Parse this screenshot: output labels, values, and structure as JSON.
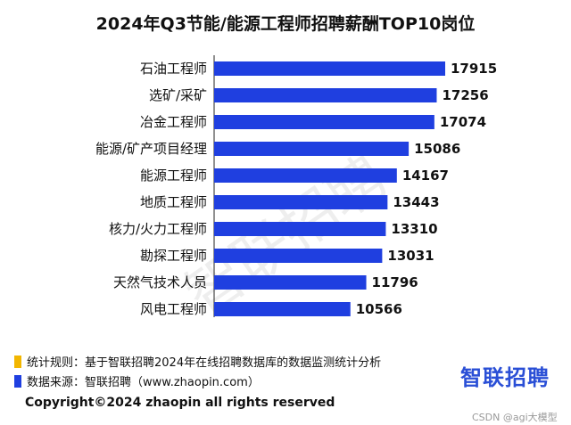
{
  "chart_data": {
    "type": "bar",
    "orientation": "horizontal",
    "title": "2024年Q3节能/能源工程师招聘薪酬TOP10岗位",
    "categories": [
      "石油工程师",
      "选矿/采矿",
      "冶金工程师",
      "能源/矿产项目经理",
      "能源工程师",
      "地质工程师",
      "核力/火力工程师",
      "勘探工程师",
      "天然气技术人员",
      "风电工程师"
    ],
    "values": [
      17915,
      17256,
      17074,
      15086,
      14167,
      13443,
      13310,
      13031,
      11796,
      10566
    ],
    "xlim": [
      0,
      17915
    ],
    "grid": false,
    "bar_color": "#1f3fe0"
  },
  "watermark": "智联招聘",
  "legend": [
    {
      "text": "统计规则：基于智联招聘2024年在线招聘数据库的数据监测统计分析",
      "color": "#f2b600"
    },
    {
      "text": "数据来源：智联招聘（www.zhaopin.com）",
      "color": "#1f3fe0"
    }
  ],
  "logo_text": "智联招聘",
  "copyright": "Copyright©2024 zhaopin all rights reserved",
  "credit": "CSDN @agi大模型"
}
